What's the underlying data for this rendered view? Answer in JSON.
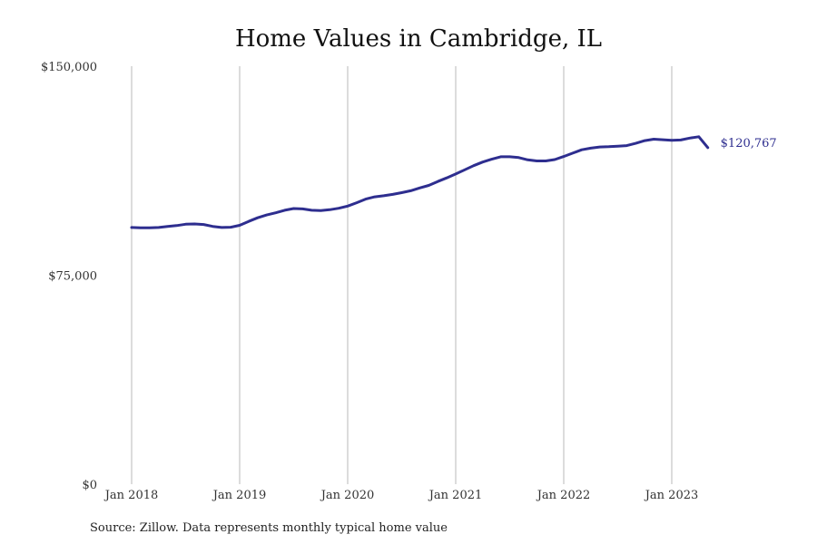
{
  "chart_data": {
    "type": "line",
    "title": "Home Values in Cambridge, IL",
    "xlabel": "",
    "ylabel": "",
    "ylim": [
      0,
      150000
    ],
    "y_ticks": [
      {
        "value": 0,
        "label": "$0"
      },
      {
        "value": 75000,
        "label": "$75,000"
      },
      {
        "value": 150000,
        "label": "$150,000"
      }
    ],
    "x_ticks": [
      {
        "date": "2018-01",
        "label": "Jan 2018"
      },
      {
        "date": "2019-01",
        "label": "Jan 2019"
      },
      {
        "date": "2020-01",
        "label": "Jan 2020"
      },
      {
        "date": "2021-01",
        "label": "Jan 2021"
      },
      {
        "date": "2022-01",
        "label": "Jan 2022"
      },
      {
        "date": "2023-01",
        "label": "Jan 2023"
      }
    ],
    "grid": "vertical at year ticks",
    "series": [
      {
        "name": "",
        "color": "#2e2e8f",
        "end_label": "$120,767",
        "x": [
          "2018-01",
          "2018-02",
          "2018-03",
          "2018-04",
          "2018-05",
          "2018-06",
          "2018-07",
          "2018-08",
          "2018-09",
          "2018-10",
          "2018-11",
          "2018-12",
          "2019-01",
          "2019-02",
          "2019-03",
          "2019-04",
          "2019-05",
          "2019-06",
          "2019-07",
          "2019-08",
          "2019-09",
          "2019-10",
          "2019-11",
          "2019-12",
          "2020-01",
          "2020-02",
          "2020-03",
          "2020-04",
          "2020-05",
          "2020-06",
          "2020-07",
          "2020-08",
          "2020-09",
          "2020-10",
          "2020-11",
          "2020-12",
          "2021-01",
          "2021-02",
          "2021-03",
          "2021-04",
          "2021-05",
          "2021-06",
          "2021-07",
          "2021-08",
          "2021-09",
          "2021-10",
          "2021-11",
          "2021-12",
          "2022-01",
          "2022-02",
          "2022-03",
          "2022-04",
          "2022-05",
          "2022-06",
          "2022-07",
          "2022-08",
          "2022-09",
          "2022-10",
          "2022-11",
          "2022-12",
          "2023-01",
          "2023-02",
          "2023-03",
          "2023-04",
          "2023-05"
        ],
        "values": [
          92100,
          92000,
          92000,
          92100,
          92500,
          92800,
          93300,
          93400,
          93200,
          92500,
          92100,
          92200,
          92900,
          94300,
          95600,
          96600,
          97400,
          98300,
          98900,
          98800,
          98300,
          98200,
          98500,
          99000,
          99800,
          101000,
          102300,
          103100,
          103500,
          104000,
          104600,
          105300,
          106300,
          107200,
          108600,
          109900,
          111300,
          112800,
          114300,
          115600,
          116600,
          117500,
          117500,
          117200,
          116400,
          116000,
          116000,
          116500,
          117600,
          118800,
          120000,
          120600,
          121000,
          121100,
          121300,
          121500,
          122300,
          123300,
          123800,
          123600,
          123400,
          123500,
          124200,
          124700,
          120767
        ]
      }
    ]
  },
  "source": "Source: Zillow. Data represents monthly typical home value"
}
